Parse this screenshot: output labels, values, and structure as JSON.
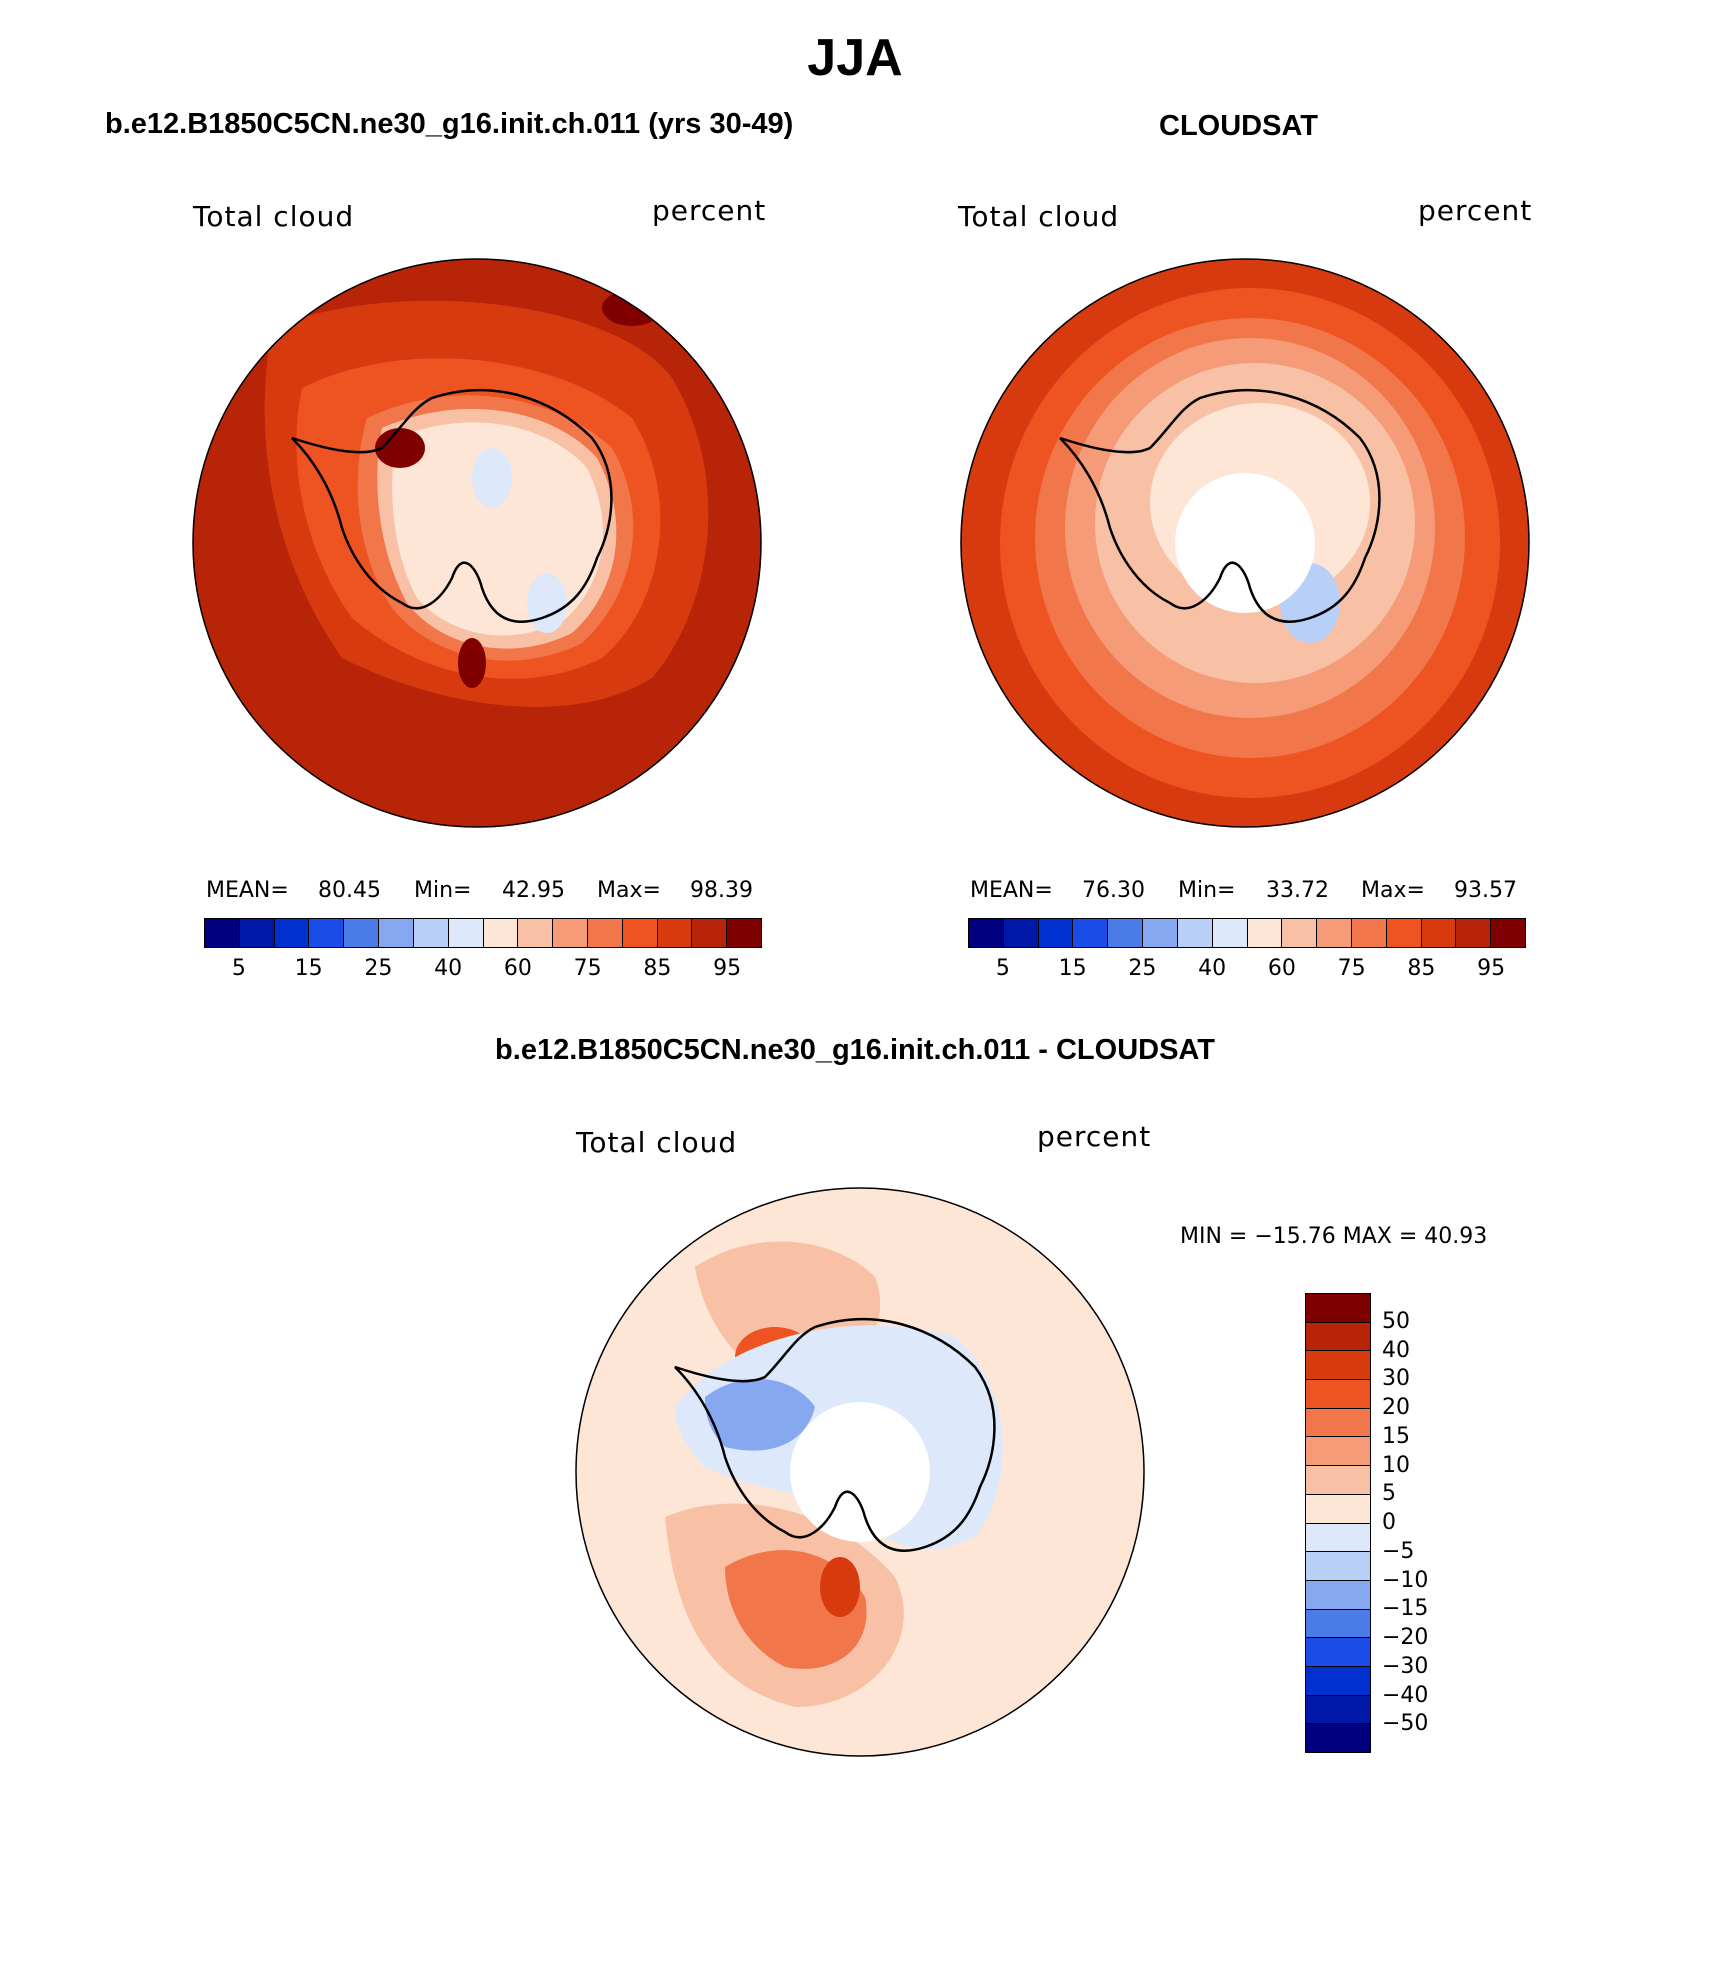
{
  "title": "JJA",
  "colors": {
    "abs_palette": [
      "#000080",
      "#0018a8",
      "#0030d0",
      "#1a4ce8",
      "#4a7be6",
      "#86a8f0",
      "#b8cff8",
      "#dde9fb",
      "#fde6d6",
      "#f8c1a6",
      "#f59b78",
      "#f1764a",
      "#ee5322",
      "#d83a10",
      "#b82408",
      "#800000"
    ],
    "diff_palette": [
      "#800000",
      "#b82408",
      "#d83a10",
      "#ee5322",
      "#f1764a",
      "#f59b78",
      "#f8c1a6",
      "#fde6d6",
      "#dde9fb",
      "#b8cff8",
      "#86a8f0",
      "#4a7be6",
      "#1a4ce8",
      "#0030d0",
      "#0018a8",
      "#000080"
    ],
    "land_outline": "#000000"
  },
  "panels": [
    {
      "title": "b.e12.B1850C5CN.ne30_g16.init.ch.011 (yrs 30-49)",
      "left_label": "Total cloud",
      "right_label": "percent",
      "stats": {
        "mean_label": "MEAN=",
        "mean": "80.45",
        "min_label": "Min=",
        "min": "42.95",
        "max_label": "Max=",
        "max": "98.39"
      },
      "colorbar_ticks": [
        "5",
        "15",
        "25",
        "40",
        "60",
        "75",
        "85",
        "95"
      ]
    },
    {
      "title": "CLOUDSAT",
      "left_label": "Total cloud",
      "right_label": "percent",
      "stats": {
        "mean_label": "MEAN=",
        "mean": "76.30",
        "min_label": "Min=",
        "min": "33.72",
        "max_label": "Max=",
        "max": "93.57"
      },
      "colorbar_ticks": [
        "5",
        "15",
        "25",
        "40",
        "60",
        "75",
        "85",
        "95"
      ]
    },
    {
      "title": "b.e12.B1850C5CN.ne30_g16.init.ch.011 - CLOUDSAT",
      "left_label": "Total cloud",
      "right_label": "percent",
      "stats_line": "MIN = −15.76 MAX =   40.93",
      "colorbar_ticks": [
        "50",
        "40",
        "30",
        "20",
        "15",
        "10",
        "5",
        "0",
        "−5",
        "−10",
        "−15",
        "−20",
        "−30",
        "−40",
        "−50"
      ]
    }
  ]
}
